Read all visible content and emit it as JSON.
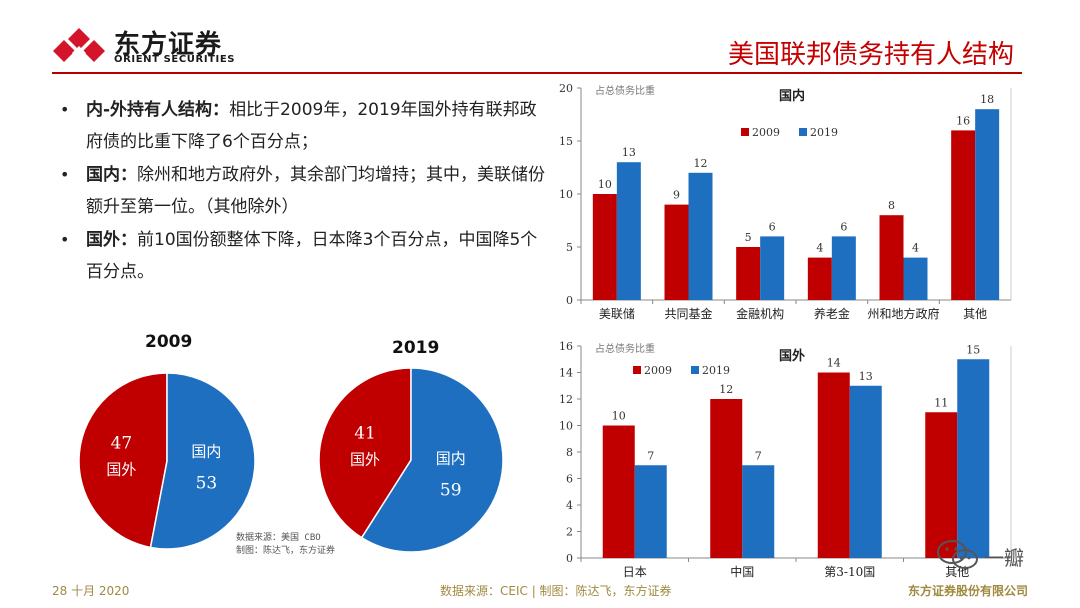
{
  "brand": {
    "name_cn": "东方证券",
    "name_en": "ORIENT SECURITIES",
    "brand_color": "#d3142a"
  },
  "header": {
    "title": "美国联邦债务持有人结构",
    "accent_color": "#c40000"
  },
  "bullets": [
    {
      "head": "内-外持有人结构：",
      "body": "相比于2009年，2019年国外持有联邦政府债的比重下降了6个百分点；"
    },
    {
      "head": "国内：",
      "body": "除州和地方政府外，其余部门均增持；其中，美联储份额升至第一位。（其他除外）"
    },
    {
      "head": "国外：",
      "body": "前10国份额整体下降，日本降3个百分点，中国降5个百分点。"
    }
  ],
  "colors": {
    "y2009": "#c00000",
    "y2019": "#1f6fc1"
  },
  "chart_data": [
    {
      "type": "pie",
      "title": "2009",
      "slices": [
        {
          "label": "国外",
          "value": 47
        },
        {
          "label": "国内",
          "value": 53
        }
      ]
    },
    {
      "type": "pie",
      "title": "2019",
      "slices": [
        {
          "label": "国外",
          "value": 41
        },
        {
          "label": "国内",
          "value": 59
        }
      ]
    },
    {
      "type": "bar",
      "title": "国内",
      "ylabel": "占总债务比重",
      "categories": [
        "美联储",
        "共同基金",
        "金融机构",
        "养老金",
        "州和地方政府",
        "其他"
      ],
      "series": [
        {
          "name": "2009",
          "values": [
            10,
            9,
            5,
            4,
            8,
            16
          ]
        },
        {
          "name": "2019",
          "values": [
            13,
            12,
            6,
            6,
            4,
            18
          ]
        }
      ],
      "ylim": [
        0,
        20
      ],
      "yticks": [
        0,
        5,
        10,
        15,
        20
      ],
      "legend": "top-left"
    },
    {
      "type": "bar",
      "title": "国外",
      "ylabel": "占总债务比重",
      "categories": [
        "日本",
        "中国",
        "第3-10国",
        "其他"
      ],
      "series": [
        {
          "name": "2009",
          "values": [
            10,
            12,
            14,
            11
          ]
        },
        {
          "name": "2019",
          "values": [
            7,
            7,
            13,
            15
          ]
        }
      ],
      "ylim": [
        0,
        16
      ],
      "yticks": [
        0,
        2,
        4,
        6,
        8,
        10,
        12,
        14,
        16
      ],
      "legend": "top-left"
    }
  ],
  "source_note": {
    "line1": "数据来源：美国 CBO",
    "line2": "制图：陈达飞，东方证券"
  },
  "footer": {
    "date": "28 十月 2020",
    "source": "数据来源：CEIC | 制图：陈达飞，东方证券",
    "corp": "东方证券股份有限公司"
  },
  "watermark": {
    "text": "一瓣"
  }
}
